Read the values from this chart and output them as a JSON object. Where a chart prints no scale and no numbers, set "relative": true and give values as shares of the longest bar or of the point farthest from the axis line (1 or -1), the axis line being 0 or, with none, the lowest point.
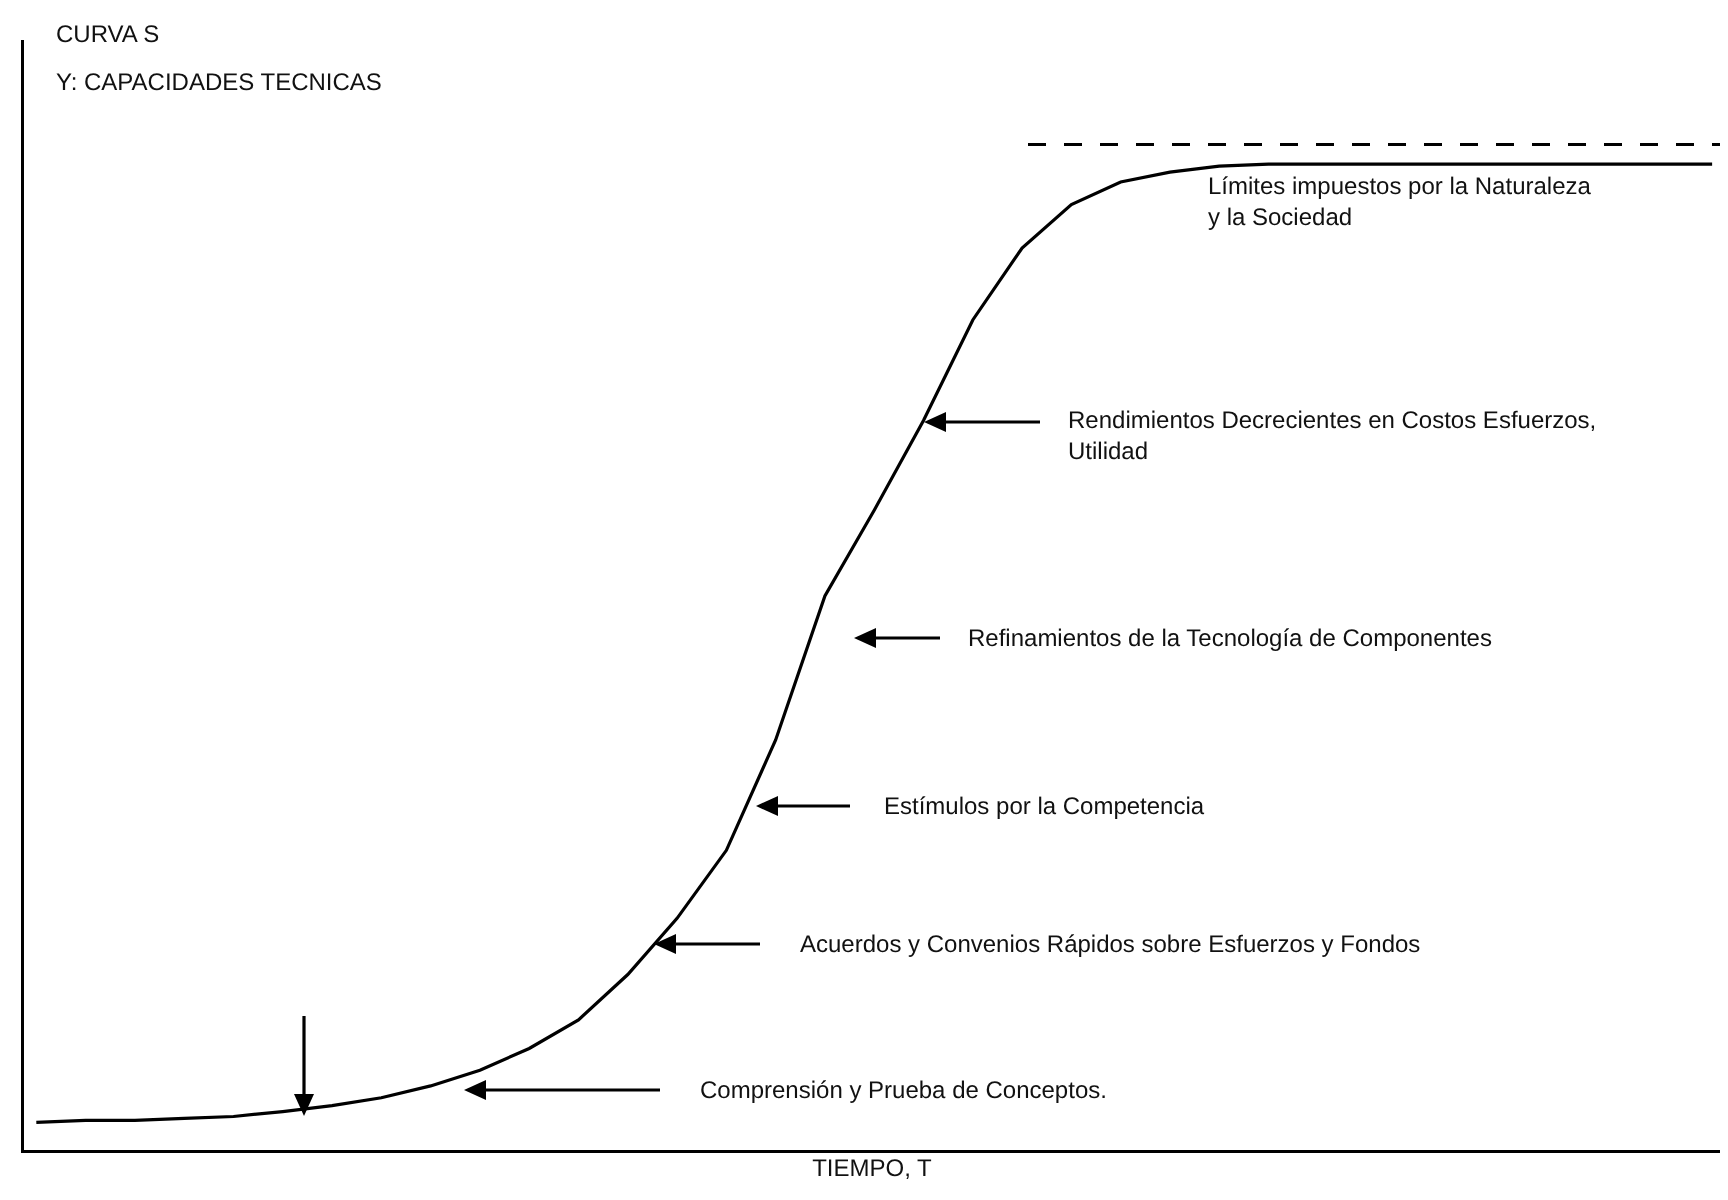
{
  "chart_data": {
    "type": "line",
    "title": "CURVA S",
    "ylabel": "Y: CAPACIDADES TECNICAS",
    "xlabel": "TIEMPO, T",
    "relative": true,
    "tick_labels": false,
    "marker": "none",
    "line_style": "solid",
    "categories": [
      null,
      null,
      null,
      null,
      null,
      null,
      null,
      null,
      null,
      null,
      null,
      null,
      null,
      null,
      null,
      null,
      null,
      null,
      null,
      null,
      null,
      null,
      null,
      null,
      null,
      null,
      null,
      null,
      null,
      null,
      null,
      null,
      null,
      null,
      null
    ],
    "series": [
      {
        "color": "#000000",
        "values": [
          0.028,
          0.03,
          0.03,
          0.032,
          0.034,
          0.039,
          0.045,
          0.053,
          0.065,
          0.081,
          0.103,
          0.132,
          0.178,
          0.235,
          0.304,
          0.416,
          0.562,
          0.649,
          0.74,
          0.842,
          0.915,
          0.959,
          0.982,
          0.992,
          0.998,
          1,
          1,
          1,
          1,
          1,
          1,
          1,
          1,
          1,
          1
        ]
      }
    ],
    "ref_lines": [
      {
        "axis": "y",
        "value": 1.02,
        "label": "Límites impuestos por la Naturaleza\ny la Sociedad",
        "line_style": "dashed",
        "color": "#000000"
      }
    ],
    "annotations": [
      "Comprensión y Prueba de Conceptos.",
      "Acuerdos y Convenios Rápidos sobre Esfuerzos y Fondos",
      "Estímulos por la Competencia",
      "Refinamientos de la Tecnología de Componentes",
      "Rendimientos Decrecientes en Costos Esfuerzos,\nUtilidad"
    ]
  }
}
